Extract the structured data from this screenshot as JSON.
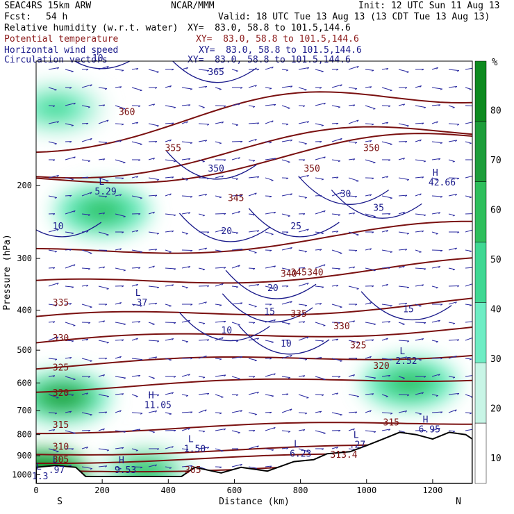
{
  "header": {
    "model": "SEAC4RS 15km ARW",
    "org": "NCAR/MMM",
    "init": "Init: 12 UTC Sun 11 Aug 13",
    "fcst_label": "Fcst:",
    "fcst_value": "54 h",
    "valid": "Valid: 18 UTC Tue 13 Aug 13 (13 CDT Tue 13 Aug 13)"
  },
  "fields": [
    {
      "name": "Relative humidity (w.r.t. water)",
      "xy": "XY=  83.0, 58.8 to 101.5,144.6",
      "color": "#000000"
    },
    {
      "name": "Potential temperature",
      "xy": "XY=  83.0, 58.8 to 101.5,144.6",
      "color": "#8b1a1a"
    },
    {
      "name": "Horizontal wind speed",
      "xy": "XY=  83.0, 58.8 to 101.5,144.6",
      "color": "#1a1a8b"
    },
    {
      "name": "Circulation vectors",
      "xy": "XY=  83.0, 58.8 to 101.5,144.6",
      "color": "#1a1a8b"
    }
  ],
  "chart_data": {
    "type": "heatmap",
    "title": "",
    "xlabel": "Distance (km)",
    "ylabel": "Pressure (hPa)",
    "xlim": [
      0,
      1320
    ],
    "ylim": [
      1050,
      100
    ],
    "x_ticks": [
      0,
      200,
      400,
      600,
      800,
      1000,
      1200
    ],
    "y_ticks": [
      200,
      300,
      400,
      500,
      600,
      700,
      800,
      900,
      1000
    ],
    "x_end_labels": {
      "left": "S",
      "right": "N"
    },
    "colorbar": {
      "unit": "%",
      "ticks": [
        10,
        20,
        30,
        40,
        50,
        60,
        70,
        80
      ],
      "levels": [
        30,
        40,
        50,
        60,
        70,
        80
      ],
      "colors": [
        "#ffffff",
        "#c8f5e6",
        "#6eedc4",
        "#3fd893",
        "#2ebf5c",
        "#1d9e3a",
        "#0d8a1f"
      ]
    },
    "rh_regions": [
      {
        "x": 80,
        "p": 650,
        "value": 70
      },
      {
        "x": 200,
        "p": 230,
        "value": 65
      },
      {
        "x": 1130,
        "p": 600,
        "value": 65
      },
      {
        "x": 330,
        "p": 980,
        "value": 60
      },
      {
        "x": 20,
        "p": 1000,
        "value": 90
      },
      {
        "x": 60,
        "p": 130,
        "value": 55
      }
    ],
    "theta_labels": [
      {
        "x": 250,
        "p": 135,
        "value": "360"
      },
      {
        "x": 390,
        "p": 165,
        "value": "355"
      },
      {
        "x": 580,
        "p": 218,
        "value": "345"
      },
      {
        "x": 770,
        "p": 330,
        "value": "345"
      },
      {
        "x": 810,
        "p": 185,
        "value": "350"
      },
      {
        "x": 990,
        "p": 165,
        "value": "350"
      },
      {
        "x": 740,
        "p": 332,
        "value": "340"
      },
      {
        "x": 820,
        "p": 330,
        "value": "340"
      },
      {
        "x": 50,
        "p": 390,
        "value": "335"
      },
      {
        "x": 770,
        "p": 415,
        "value": "335"
      },
      {
        "x": 50,
        "p": 475,
        "value": "330"
      },
      {
        "x": 900,
        "p": 445,
        "value": "330"
      },
      {
        "x": 50,
        "p": 560,
        "value": "325"
      },
      {
        "x": 950,
        "p": 495,
        "value": "325"
      },
      {
        "x": 50,
        "p": 645,
        "value": "320"
      },
      {
        "x": 1020,
        "p": 555,
        "value": "320"
      },
      {
        "x": 50,
        "p": 770,
        "value": "315"
      },
      {
        "x": 1050,
        "p": 760,
        "value": "315"
      },
      {
        "x": 50,
        "p": 870,
        "value": "310"
      },
      {
        "x": 890,
        "p": 910,
        "value": "313.4"
      },
      {
        "x": 50,
        "p": 935,
        "value": "305"
      },
      {
        "x": 450,
        "p": 990,
        "value": "305"
      }
    ],
    "wind_labels": [
      {
        "x": 170,
        "p": 100,
        "value": "10"
      },
      {
        "x": 520,
        "p": 108,
        "value": "365"
      },
      {
        "x": 520,
        "p": 185,
        "value": "350"
      },
      {
        "x": 560,
        "p": 262,
        "value": "20"
      },
      {
        "x": 770,
        "p": 255,
        "value": "25"
      },
      {
        "x": 920,
        "p": 213,
        "value": "30"
      },
      {
        "x": 1020,
        "p": 230,
        "value": "35"
      },
      {
        "x": 700,
        "p": 360,
        "value": "20"
      },
      {
        "x": 690,
        "p": 410,
        "value": "15"
      },
      {
        "x": 1110,
        "p": 405,
        "value": "15"
      },
      {
        "x": 560,
        "p": 455,
        "value": "10"
      },
      {
        "x": 740,
        "p": 490,
        "value": "10"
      },
      {
        "x": 50,
        "p": 255,
        "value": "10"
      }
    ],
    "extrema": [
      {
        "type": "L",
        "x": 300,
        "p": 390,
        "value": ".37"
      },
      {
        "type": "L",
        "x": 190,
        "p": 210,
        "value": "5.29"
      },
      {
        "type": "H",
        "x": 1200,
        "p": 200,
        "value": "42.66"
      },
      {
        "type": "L",
        "x": 1100,
        "p": 540,
        "value": "2.52"
      },
      {
        "type": "H",
        "x": 340,
        "p": 690,
        "value": "11.05"
      },
      {
        "type": "H",
        "x": 1170,
        "p": 790,
        "value": "6.95"
      },
      {
        "type": "L",
        "x": 460,
        "p": 880,
        "value": "1.50"
      },
      {
        "type": "L",
        "x": 780,
        "p": 905,
        "value": "6.23"
      },
      {
        "type": "L",
        "x": 960,
        "p": 860,
        "value": ".27"
      },
      {
        "type": "H",
        "x": 250,
        "p": 990,
        "value": "9.53"
      },
      {
        "type": "L",
        "x": 50,
        "p": 990,
        "value": ".97"
      },
      {
        "type": "L",
        "x": 0,
        "p": 1025,
        "value": "1.3"
      }
    ]
  }
}
